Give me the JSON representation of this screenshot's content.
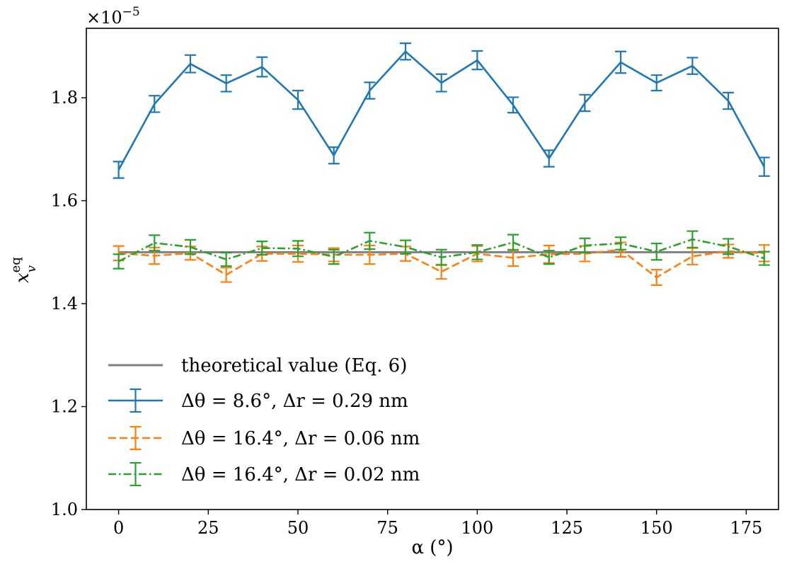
{
  "chart_data": {
    "type": "line",
    "title": "",
    "xlabel": "α (°)",
    "ylabel_base": "x",
    "ylabel_sup": "eq",
    "ylabel_sub": "v",
    "y_multiplier_base": "×10",
    "y_multiplier_exp": "−5",
    "xlim": [
      -9,
      184
    ],
    "ylim": [
      1.0,
      1.935
    ],
    "xticks": [
      0,
      25,
      50,
      75,
      100,
      125,
      150,
      175
    ],
    "xtick_labels": [
      "0",
      "25",
      "50",
      "75",
      "100",
      "125",
      "150",
      "175"
    ],
    "yticks": [
      1.0,
      1.2,
      1.4,
      1.6,
      1.8
    ],
    "ytick_labels": [
      "1.0",
      "1.2",
      "1.4",
      "1.6",
      "1.8"
    ],
    "grid": false,
    "legend_position": "lower-left",
    "reference_line": {
      "name": "theoretical value (Eq. 6)",
      "y": 1.5,
      "x": [
        0,
        180
      ],
      "color": "#808080"
    },
    "series": [
      {
        "name": "Δθ = 8.6°,  Δr = 0.29 nm",
        "color": "#1f77b4",
        "dash": "solid",
        "x": [
          0,
          10,
          20,
          30,
          40,
          50,
          60,
          70,
          80,
          90,
          100,
          110,
          120,
          130,
          140,
          150,
          160,
          170,
          180
        ],
        "y": [
          1.66,
          1.788,
          1.866,
          1.828,
          1.86,
          1.796,
          1.688,
          1.814,
          1.89,
          1.829,
          1.873,
          1.786,
          1.682,
          1.79,
          1.869,
          1.829,
          1.862,
          1.794,
          1.666
        ],
        "err": [
          0.016,
          0.016,
          0.017,
          0.016,
          0.019,
          0.018,
          0.016,
          0.016,
          0.016,
          0.017,
          0.018,
          0.015,
          0.016,
          0.016,
          0.021,
          0.015,
          0.016,
          0.016,
          0.018
        ]
      },
      {
        "name": "Δθ = 16.4°,  Δr = 0.06 nm",
        "color": "#ff7f0e",
        "dash": "dashed",
        "x": [
          0,
          10,
          20,
          30,
          40,
          50,
          60,
          70,
          80,
          90,
          100,
          110,
          120,
          130,
          140,
          150,
          160,
          170,
          180
        ],
        "y": [
          1.498,
          1.493,
          1.498,
          1.456,
          1.497,
          1.497,
          1.495,
          1.495,
          1.497,
          1.462,
          1.497,
          1.489,
          1.496,
          1.497,
          1.505,
          1.451,
          1.492,
          1.502,
          1.498
        ],
        "err": [
          0.014,
          0.016,
          0.013,
          0.014,
          0.014,
          0.016,
          0.013,
          0.018,
          0.014,
          0.014,
          0.015,
          0.016,
          0.017,
          0.015,
          0.014,
          0.015,
          0.016,
          0.013,
          0.016
        ]
      },
      {
        "name": "Δθ = 16.4°,  Δr = 0.02 nm",
        "color": "#2ca02c",
        "dash": "dashdot",
        "x": [
          0,
          10,
          20,
          30,
          40,
          50,
          60,
          70,
          80,
          90,
          100,
          110,
          120,
          130,
          140,
          150,
          160,
          170,
          180
        ],
        "y": [
          1.482,
          1.518,
          1.51,
          1.486,
          1.508,
          1.507,
          1.491,
          1.522,
          1.51,
          1.49,
          1.5,
          1.519,
          1.49,
          1.513,
          1.517,
          1.501,
          1.525,
          1.511,
          1.488
        ],
        "err": [
          0.014,
          0.015,
          0.014,
          0.013,
          0.013,
          0.015,
          0.014,
          0.016,
          0.013,
          0.015,
          0.014,
          0.015,
          0.013,
          0.014,
          0.012,
          0.016,
          0.016,
          0.015,
          0.013
        ]
      }
    ]
  }
}
